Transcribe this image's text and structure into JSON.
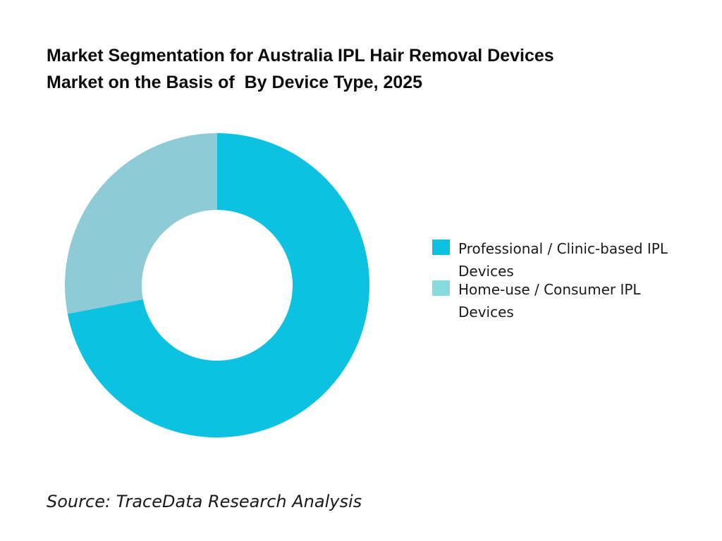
{
  "title_lines": [
    "Market Segmentation for Australia IPL Hair Removal Devices",
    "Market on the Basis of  By Device Type, 2025"
  ],
  "source": "Source: TraceData Research Analysis",
  "chart_data": {
    "type": "pie",
    "donut": true,
    "title": "Market Segmentation for Australia IPL Hair Removal Devices Market on the Basis of  By Device Type, 2025",
    "legend_position": "right",
    "slices": [
      {
        "label": "Professional / Clinic-based IPL Devices",
        "value": 72,
        "color": "#0dc1e0"
      },
      {
        "label": "Home-use / Consumer IPL Devices",
        "value": 28,
        "color": "#8ecbd7"
      }
    ],
    "legend_colors": [
      "#0dc1e0",
      "#86dbdc"
    ]
  }
}
